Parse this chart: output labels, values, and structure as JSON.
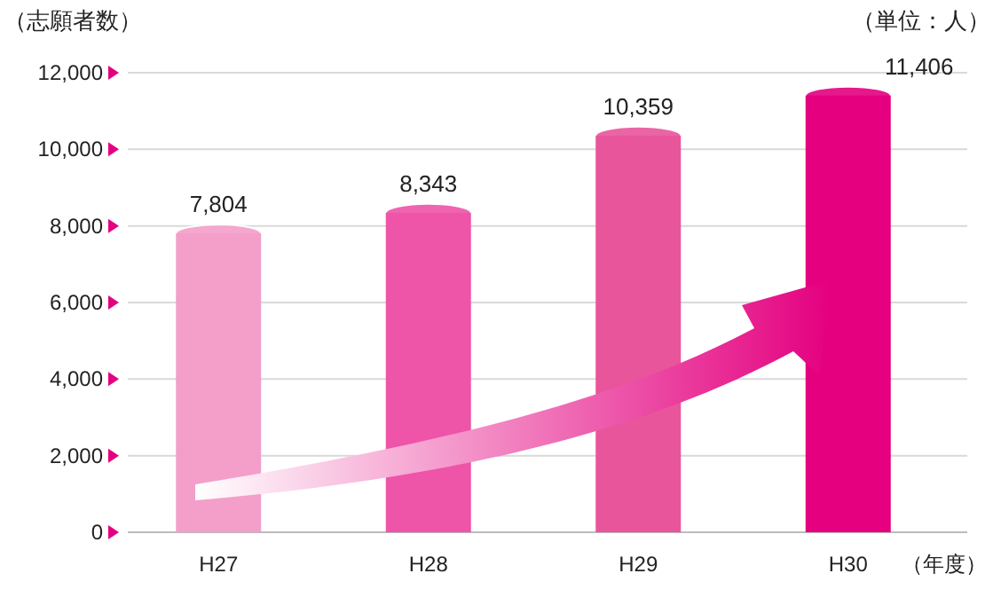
{
  "chart_data": {
    "type": "bar",
    "ylabel": "（志願者数）",
    "xlabel": "（年度）",
    "annotations": [
      "（単位：人）"
    ],
    "categories": [
      "H27",
      "H28",
      "H29",
      "H30"
    ],
    "values": [
      7804,
      8343,
      10359,
      11406
    ],
    "colors": [
      "#f39fc9",
      "#ee54a7",
      "#e8559b",
      "#e4007f"
    ],
    "value_labels": [
      "7,804",
      "8,343",
      "10,359",
      "11,406"
    ],
    "ylim": [
      0,
      12000
    ],
    "yticks": [
      {
        "value": 0,
        "label": "0"
      },
      {
        "value": 2000,
        "label": "2,000"
      },
      {
        "value": 4000,
        "label": "4,000"
      },
      {
        "value": 6000,
        "label": "6,000"
      },
      {
        "value": 8000,
        "label": "8,000"
      },
      {
        "value": 10000,
        "label": "10,000"
      },
      {
        "value": 12000,
        "label": "12,000"
      }
    ],
    "grid": "y"
  }
}
